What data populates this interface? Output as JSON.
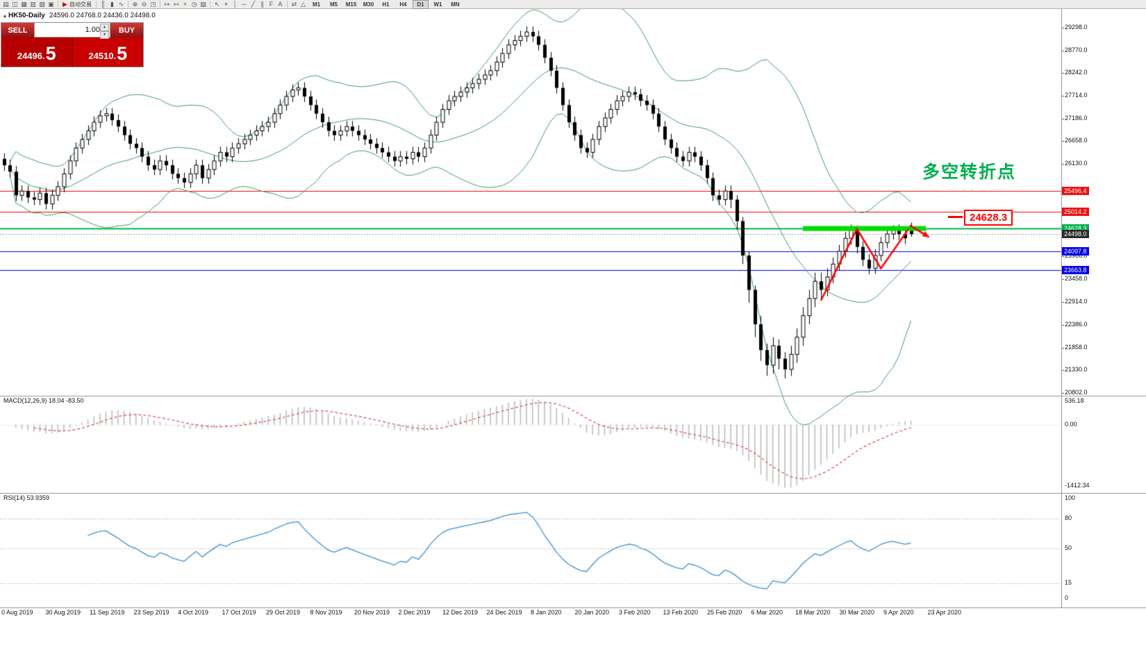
{
  "toolbar": {
    "icons": [
      {
        "name": "new-chart-icon",
        "glyph": "▤"
      },
      {
        "name": "profiles-icon",
        "glyph": "◫"
      },
      {
        "name": "market-watch-icon",
        "glyph": "▦"
      },
      {
        "name": "navigator-icon",
        "glyph": "▥"
      },
      {
        "name": "terminal-icon",
        "glyph": "▧"
      },
      {
        "name": "new-order-icon",
        "glyph": "▣"
      },
      {
        "name": "autotrade-icon",
        "glyph": "▶",
        "color": "#cc0000",
        "label": "自动交易"
      },
      {
        "name": "bar-chart-icon",
        "glyph": "║"
      },
      {
        "name": "candlestick-chart-icon",
        "glyph": "▮"
      },
      {
        "name": "line-chart-icon",
        "glyph": "∿"
      },
      {
        "name": "zoom-in-icon",
        "glyph": "⊕"
      },
      {
        "name": "zoom-out-icon",
        "glyph": "⊖"
      },
      {
        "name": "tile-windows-icon",
        "glyph": "◳"
      },
      {
        "name": "auto-scroll-icon",
        "glyph": "↦"
      },
      {
        "name": "chart-shift-icon",
        "glyph": "↤"
      },
      {
        "name": "indicators-icon",
        "glyph": "+",
        "color": "#1a7f1a"
      },
      {
        "name": "periods-icon",
        "glyph": "◷"
      },
      {
        "name": "templates-icon",
        "glyph": "▨"
      },
      {
        "name": "cursor-icon",
        "glyph": "↖"
      },
      {
        "name": "crosshair-icon",
        "glyph": "⌖"
      },
      {
        "name": "vertical-line-icon",
        "glyph": "│"
      },
      {
        "name": "horizontal-line-icon",
        "glyph": "─"
      },
      {
        "name": "trendline-icon",
        "glyph": "╱"
      },
      {
        "name": "channel-icon",
        "glyph": "∥"
      },
      {
        "name": "fibonacci-icon",
        "glyph": "F"
      },
      {
        "name": "text-icon",
        "glyph": "A"
      },
      {
        "name": "arrows-icon",
        "glyph": "⇄"
      },
      {
        "name": "shapes-icon",
        "glyph": "△"
      }
    ],
    "timeframes": [
      "M1",
      "M5",
      "M15",
      "M30",
      "H1",
      "H4",
      "D1",
      "W1",
      "MN"
    ],
    "active_timeframe": "D1"
  },
  "chart": {
    "title_marker": "▴",
    "symbol": "HK50-Daily",
    "ohlc": "24596.0 24768.0 24436.0 24498.0",
    "annotation_cn": "多空转折点",
    "callout_price": "24628.3"
  },
  "trade_panel": {
    "sell_label": "SELL",
    "buy_label": "BUY",
    "volume": "1.00",
    "up_glyph": "▴",
    "down_glyph": "▾",
    "bid": "24496.",
    "bid_big": "5",
    "ask": "24510.",
    "ask_big": "5"
  },
  "price_axis": {
    "ticks": [
      {
        "label": "29298.0",
        "value": 29298
      },
      {
        "label": "28770.0",
        "value": 28770
      },
      {
        "label": "28242.0",
        "value": 28242
      },
      {
        "label": "27714.0",
        "value": 27714
      },
      {
        "label": "27186.0",
        "value": 27186
      },
      {
        "label": "26658.0",
        "value": 26658
      },
      {
        "label": "26130.0",
        "value": 26130
      },
      {
        "label": "23986.0",
        "value": 23986
      },
      {
        "label": "23458.0",
        "value": 23458
      },
      {
        "label": "22914.0",
        "value": 22914
      },
      {
        "label": "22386.0",
        "value": 22386
      },
      {
        "label": "21858.0",
        "value": 21858
      },
      {
        "label": "21330.0",
        "value": 21330
      },
      {
        "label": "20802.0",
        "value": 20802
      }
    ],
    "tags": [
      {
        "label": "25496.4",
        "value": 25496.4,
        "bg": "#ee1111",
        "line": "#ff0000",
        "dash": [],
        "width": 1
      },
      {
        "label": "25014.2",
        "value": 25014.2,
        "bg": "#ee1111",
        "line": "#ff0000",
        "dash": [],
        "width": 1
      },
      {
        "label": "24628.3",
        "value": 24628.3,
        "bg": "#00b24a",
        "line": "#00b24a",
        "dash": [],
        "width": 2
      },
      {
        "label": "24498.0",
        "value": 24498.0,
        "bg": "#2a2a2a",
        "line": "#9a9a9a",
        "dash": [
          2,
          2
        ],
        "width": 1
      },
      {
        "label": "24097.8",
        "value": 24097.8,
        "bg": "#0000e8",
        "line": "#0000e8",
        "dash": [],
        "width": 1
      },
      {
        "label": "23663.8",
        "value": 23663.8,
        "bg": "#0000e8",
        "line": "#0000e8",
        "dash": [],
        "width": 1
      }
    ]
  },
  "chart_data": {
    "type": "candlestick",
    "symbol": "HK50",
    "timeframe": "Daily",
    "bollinger": {
      "period": 20,
      "deviation": 2,
      "color": "#3f9e63"
    },
    "candles": [
      [
        26250,
        26380,
        25970,
        26100
      ],
      [
        26100,
        26230,
        25820,
        25950
      ],
      [
        25950,
        26080,
        25270,
        25400
      ],
      [
        25400,
        25630,
        25270,
        25500
      ],
      [
        25500,
        25630,
        25220,
        25350
      ],
      [
        25350,
        25480,
        25170,
        25300
      ],
      [
        25300,
        25580,
        25170,
        25450
      ],
      [
        25450,
        25580,
        25070,
        25200
      ],
      [
        25200,
        25530,
        25070,
        25400
      ],
      [
        25400,
        25730,
        25270,
        25600
      ],
      [
        25600,
        26030,
        25470,
        25900
      ],
      [
        25900,
        26330,
        25770,
        26200
      ],
      [
        26200,
        26630,
        26070,
        26500
      ],
      [
        26500,
        26830,
        26370,
        26700
      ],
      [
        26700,
        27030,
        26570,
        26900
      ],
      [
        26900,
        27230,
        26770,
        27100
      ],
      [
        27100,
        27380,
        26970,
        27250
      ],
      [
        27250,
        27430,
        27120,
        27300
      ],
      [
        27300,
        27430,
        27020,
        27150
      ],
      [
        27150,
        27280,
        26870,
        27000
      ],
      [
        27000,
        27130,
        26670,
        26800
      ],
      [
        26800,
        26930,
        26470,
        26600
      ],
      [
        26600,
        26730,
        26370,
        26500
      ],
      [
        26500,
        26630,
        26170,
        26300
      ],
      [
        26300,
        26430,
        25970,
        26100
      ],
      [
        26100,
        26230,
        25870,
        26000
      ],
      [
        26000,
        26330,
        25870,
        26200
      ],
      [
        26200,
        26330,
        25970,
        26100
      ],
      [
        26100,
        26230,
        25770,
        25900
      ],
      [
        25900,
        26030,
        25670,
        25800
      ],
      [
        25800,
        25930,
        25570,
        25700
      ],
      [
        25700,
        26030,
        25570,
        25900
      ],
      [
        25900,
        26230,
        25770,
        26100
      ],
      [
        26100,
        26230,
        25670,
        25800
      ],
      [
        25800,
        26130,
        25670,
        26000
      ],
      [
        26000,
        26330,
        25870,
        26200
      ],
      [
        26200,
        26530,
        26070,
        26400
      ],
      [
        26400,
        26530,
        26170,
        26300
      ],
      [
        26300,
        26630,
        26170,
        26500
      ],
      [
        26500,
        26730,
        26370,
        26600
      ],
      [
        26600,
        26830,
        26470,
        26700
      ],
      [
        26700,
        26930,
        26570,
        26800
      ],
      [
        26800,
        27030,
        26670,
        26900
      ],
      [
        26900,
        27130,
        26770,
        27000
      ],
      [
        27000,
        27230,
        26870,
        27100
      ],
      [
        27100,
        27430,
        26970,
        27300
      ],
      [
        27300,
        27630,
        27170,
        27500
      ],
      [
        27500,
        27830,
        27370,
        27700
      ],
      [
        27700,
        27980,
        27570,
        27850
      ],
      [
        27850,
        28030,
        27720,
        27900
      ],
      [
        27900,
        28030,
        27570,
        27700
      ],
      [
        27700,
        27830,
        27370,
        27500
      ],
      [
        27500,
        27630,
        27170,
        27300
      ],
      [
        27300,
        27430,
        26970,
        27100
      ],
      [
        27100,
        27230,
        26770,
        26900
      ],
      [
        26900,
        27030,
        26670,
        26800
      ],
      [
        26800,
        27030,
        26670,
        26900
      ],
      [
        26900,
        27130,
        26770,
        27000
      ],
      [
        27000,
        27130,
        26770,
        26900
      ],
      [
        26900,
        27030,
        26670,
        26800
      ],
      [
        26800,
        26930,
        26570,
        26700
      ],
      [
        26700,
        26830,
        26470,
        26600
      ],
      [
        26600,
        26730,
        26370,
        26500
      ],
      [
        26500,
        26630,
        26270,
        26400
      ],
      [
        26400,
        26530,
        26170,
        26300
      ],
      [
        26300,
        26430,
        26070,
        26200
      ],
      [
        26200,
        26430,
        26070,
        26300
      ],
      [
        26300,
        26430,
        26120,
        26250
      ],
      [
        26250,
        26530,
        26120,
        26400
      ],
      [
        26400,
        26530,
        26170,
        26300
      ],
      [
        26300,
        26630,
        26170,
        26500
      ],
      [
        26500,
        26930,
        26370,
        26800
      ],
      [
        26800,
        27230,
        26670,
        27100
      ],
      [
        27100,
        27530,
        26970,
        27400
      ],
      [
        27400,
        27730,
        27270,
        27600
      ],
      [
        27600,
        27830,
        27470,
        27700
      ],
      [
        27700,
        27930,
        27570,
        27800
      ],
      [
        27800,
        28030,
        27670,
        27900
      ],
      [
        27900,
        28130,
        27770,
        28000
      ],
      [
        28000,
        28230,
        27870,
        28100
      ],
      [
        28100,
        28330,
        27970,
        28200
      ],
      [
        28200,
        28430,
        28070,
        28300
      ],
      [
        28300,
        28630,
        28170,
        28500
      ],
      [
        28500,
        28830,
        28370,
        28700
      ],
      [
        28700,
        29030,
        28570,
        28900
      ],
      [
        28900,
        29130,
        28770,
        29000
      ],
      [
        29000,
        29230,
        28870,
        29100
      ],
      [
        29100,
        29330,
        28970,
        29200
      ],
      [
        29200,
        29330,
        28970,
        29100
      ],
      [
        29100,
        29230,
        28770,
        28900
      ],
      [
        28900,
        29030,
        28470,
        28600
      ],
      [
        28600,
        28730,
        28170,
        28300
      ],
      [
        28300,
        28430,
        27770,
        27900
      ],
      [
        27900,
        28030,
        27370,
        27500
      ],
      [
        27500,
        27630,
        26970,
        27100
      ],
      [
        27100,
        27230,
        26670,
        26800
      ],
      [
        26800,
        26930,
        26370,
        26500
      ],
      [
        26500,
        26630,
        26270,
        26400
      ],
      [
        26400,
        26830,
        26270,
        26700
      ],
      [
        26700,
        27130,
        26570,
        27000
      ],
      [
        27000,
        27330,
        26870,
        27200
      ],
      [
        27200,
        27530,
        27070,
        27400
      ],
      [
        27400,
        27730,
        27270,
        27600
      ],
      [
        27600,
        27830,
        27470,
        27700
      ],
      [
        27700,
        27930,
        27570,
        27800
      ],
      [
        27800,
        27930,
        27620,
        27750
      ],
      [
        27750,
        27880,
        27470,
        27600
      ],
      [
        27600,
        27730,
        27370,
        27500
      ],
      [
        27500,
        27630,
        27170,
        27300
      ],
      [
        27300,
        27430,
        26870,
        27000
      ],
      [
        27000,
        27130,
        26570,
        26700
      ],
      [
        26700,
        26830,
        26370,
        26500
      ],
      [
        26500,
        26630,
        26170,
        26300
      ],
      [
        26300,
        26430,
        26070,
        26200
      ],
      [
        26200,
        26530,
        26070,
        26400
      ],
      [
        26400,
        26530,
        26170,
        26300
      ],
      [
        26300,
        26430,
        25970,
        26100
      ],
      [
        26100,
        26230,
        25670,
        25800
      ],
      [
        25800,
        25930,
        25270,
        25400
      ],
      [
        25400,
        25530,
        25170,
        25300
      ],
      [
        25300,
        25630,
        25170,
        25500
      ],
      [
        25500,
        25630,
        25100,
        25300
      ],
      [
        25300,
        25400,
        24600,
        24800
      ],
      [
        24800,
        24900,
        23800,
        24000
      ],
      [
        24000,
        24100,
        22900,
        23200
      ],
      [
        23200,
        23300,
        22100,
        22400
      ],
      [
        22400,
        22600,
        21550,
        21800
      ],
      [
        21800,
        21950,
        21200,
        21450
      ],
      [
        21450,
        22100,
        21250,
        21900
      ],
      [
        21900,
        22050,
        21350,
        21600
      ],
      [
        21600,
        21750,
        21140,
        21350
      ],
      [
        21350,
        21900,
        21200,
        21700
      ],
      [
        21700,
        22300,
        21500,
        22100
      ],
      [
        22100,
        22800,
        21900,
        22600
      ],
      [
        22600,
        23200,
        22400,
        23000
      ],
      [
        23000,
        23600,
        22800,
        23400
      ],
      [
        23400,
        23600,
        23000,
        23200
      ],
      [
        23200,
        23700,
        23050,
        23500
      ],
      [
        23500,
        23950,
        23350,
        23800
      ],
      [
        23800,
        24250,
        23650,
        24100
      ],
      [
        24100,
        24550,
        23950,
        24400
      ],
      [
        24400,
        24720,
        24250,
        24600
      ],
      [
        24600,
        24700,
        24050,
        24200
      ],
      [
        24200,
        24330,
        23750,
        23900
      ],
      [
        23900,
        24030,
        23560,
        23700
      ],
      [
        23700,
        24150,
        23570,
        24000
      ],
      [
        24000,
        24430,
        23870,
        24300
      ],
      [
        24300,
        24640,
        24170,
        24500
      ],
      [
        24500,
        24700,
        24370,
        24600
      ],
      [
        24600,
        24720,
        24360,
        24500
      ],
      [
        24500,
        24620,
        24270,
        24400
      ],
      [
        24596,
        24768,
        24436,
        24498
      ]
    ],
    "drawings": {
      "resistance_bar": {
        "from_index": 133,
        "to_index": 153.5,
        "price": 24628,
        "color": "#00dc00",
        "thickness": 7
      },
      "w_pattern": {
        "color": "#ff0000",
        "width": 2.5,
        "points": [
          [
            136,
            22950
          ],
          [
            142,
            24620
          ],
          [
            146,
            23700
          ],
          [
            150.6,
            24620
          ]
        ]
      },
      "arrow": {
        "color": "#ff0000",
        "width": 2.5,
        "from": [
          150.8,
          24700
        ],
        "to": [
          154,
          24430
        ]
      }
    }
  },
  "macd": {
    "label": "MACD(12,26,9) 18.04 -83.50",
    "fast": 12,
    "slow": 26,
    "signal": 9,
    "histogram_color": "#bdbdbd",
    "signal_color": "#d84b4b",
    "axis": [
      {
        "label": "536.18",
        "value": 536.18
      },
      {
        "label": "0.00",
        "value": 0
      },
      {
        "label": "-1412.34",
        "value": -1412.34
      }
    ]
  },
  "rsi": {
    "label": "RSI(14) 53.9359",
    "period": 14,
    "line_color": "#3f8fd0",
    "levels": [
      80,
      50,
      15
    ],
    "axis": [
      {
        "label": "100",
        "value": 100
      },
      {
        "label": "80",
        "value": 80
      },
      {
        "label": "50",
        "value": 50
      },
      {
        "label": "15",
        "value": 15
      },
      {
        "label": "0",
        "value": 0
      }
    ]
  },
  "date_axis": [
    "0 Aug 2019",
    "30 Aug 2019",
    "11 Sep 2019",
    "23 Sep 2019",
    "4 Oct 2019",
    "17 Oct 2019",
    "29 Oct 2019",
    "8 Nov 2019",
    "20 Nov 2019",
    "2 Dec 2019",
    "12 Dec 2019",
    "24 Dec 2019",
    "8 Jan 2020",
    "20 Jan 2020",
    "3 Feb 2020",
    "13 Feb 2020",
    "25 Feb 2020",
    "6 Mar 2020",
    "18 Mar 2020",
    "30 Mar 2020",
    "9 Apr 2020",
    "23 Apr 2020"
  ]
}
